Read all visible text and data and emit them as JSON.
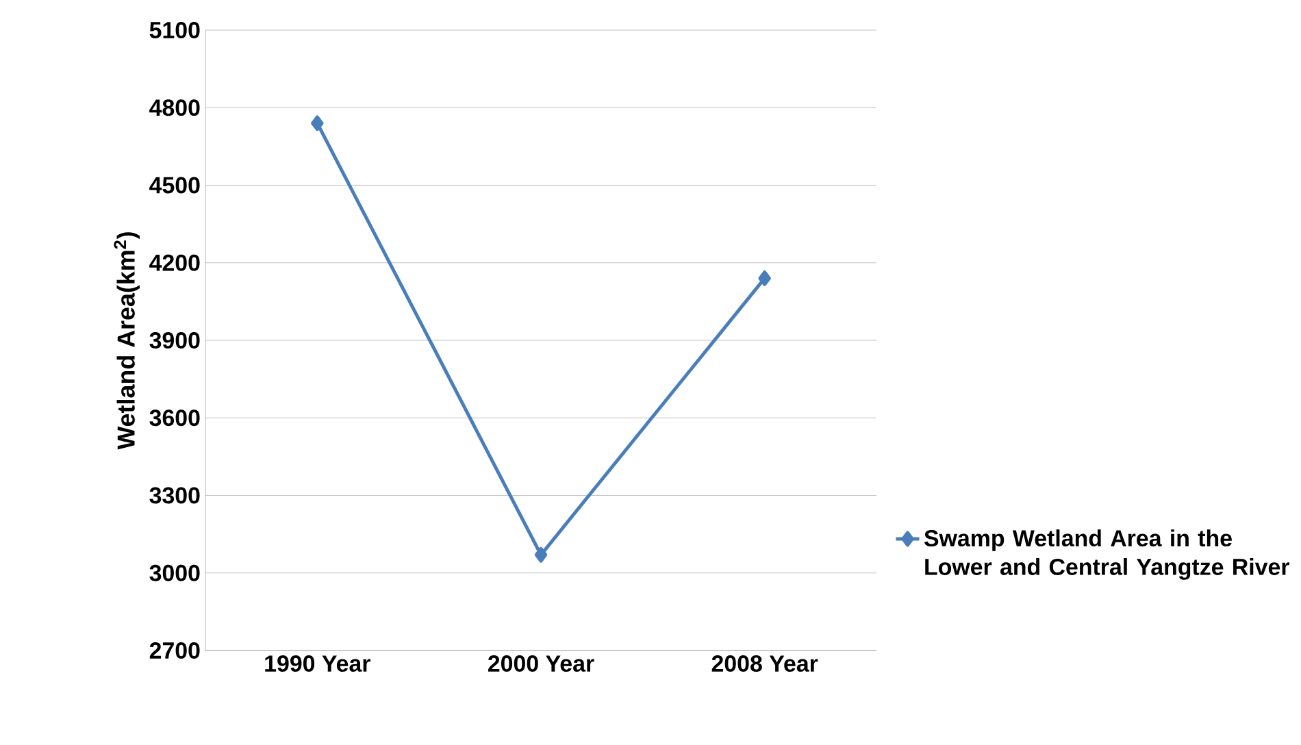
{
  "chart_data": {
    "type": "line",
    "ylabel": "Wetland Area(km$^{2}$)",
    "categories": [
      "1990 Year",
      "2000 Year",
      "2008 Year"
    ],
    "series": [
      {
        "name": "Swamp Wetland Area in the Lower and Central Yangtze River",
        "color": "#4a7ebb",
        "values": [
          4740,
          3070,
          4140
        ]
      }
    ],
    "ylim": [
      2700,
      5100
    ],
    "yticks": [
      2700,
      3000,
      3300,
      3600,
      3900,
      4200,
      4500,
      4800,
      5100
    ],
    "grid": "y",
    "legend": "right",
    "marker": "diamond",
    "line_style": "solid"
  }
}
